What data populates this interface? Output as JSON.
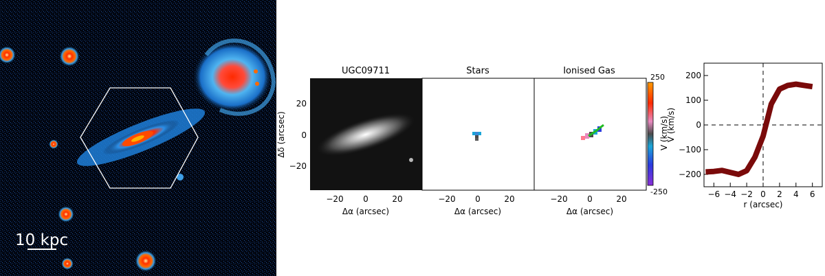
{
  "figure": {
    "image_panel": {
      "scale_bar_label": "10 kpc"
    },
    "map_panels": {
      "titles": [
        "UGC09711",
        "Stars",
        "Ionised Gas"
      ],
      "ylabel": "Δδ (arcsec)",
      "xlabel": "Δα (arcsec)",
      "x_ticks": [
        "−20",
        "0",
        "20"
      ],
      "y_ticks": [
        "20",
        "0",
        "−20"
      ],
      "colorbar": {
        "label": "V (km/s)",
        "max_label": "250",
        "min_label": "-250",
        "range": [
          -250,
          250
        ]
      }
    }
  },
  "chart_data": [
    {
      "type": "line",
      "title": "",
      "xlabel": "r (arcsec)",
      "ylabel": "V (km/s)",
      "xlim": [
        -7.2,
        7.2
      ],
      "ylim": [
        -250,
        250
      ],
      "x_ticks": [
        "−6",
        "−4",
        "−2",
        "0",
        "2",
        "4",
        "6"
      ],
      "y_ticks": [
        "200",
        "100",
        "0",
        "−100",
        "−200"
      ],
      "grid": false,
      "reference_lines": [
        {
          "axis": "x",
          "value": 0,
          "style": "dashed"
        },
        {
          "axis": "y",
          "value": 0,
          "style": "dashed"
        }
      ],
      "series": [
        {
          "color": "#7a0a0a",
          "x": [
            -7,
            -6,
            -5,
            -4,
            -3,
            -2,
            -1,
            0,
            1,
            2,
            3,
            4,
            5,
            6
          ],
          "values": [
            -190,
            -188,
            -184,
            -192,
            -200,
            -185,
            -130,
            -45,
            85,
            145,
            160,
            165,
            160,
            155
          ]
        }
      ]
    }
  ]
}
